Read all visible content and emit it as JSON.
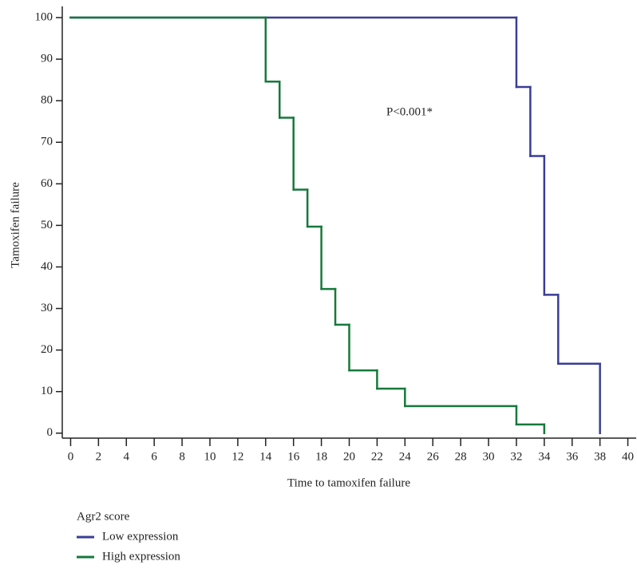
{
  "chart_data": {
    "type": "step",
    "x_label": "Time to tamoxifen failure",
    "y_label": "Tamoxifen failure",
    "annotation": "P<0.001*",
    "legend_title": "Agr2 score",
    "xlim": [
      -0.6,
      40.6
    ],
    "ylim": [
      -1.2,
      102.7
    ],
    "xticks": [
      0,
      2,
      4,
      6,
      8,
      10,
      12,
      14,
      16,
      18,
      20,
      22,
      24,
      26,
      28,
      30,
      32,
      34,
      36,
      38,
      40
    ],
    "yticks": [
      0,
      10,
      20,
      30,
      40,
      50,
      60,
      70,
      80,
      90,
      100
    ],
    "series": [
      {
        "name": "Low expression",
        "color": "#3a3d97",
        "x": [
          0,
          32,
          33,
          34,
          35,
          38
        ],
        "values": [
          100,
          83.3,
          66.7,
          33.3,
          16.7,
          0
        ]
      },
      {
        "name": "High expression",
        "color": "#16793b",
        "x": [
          0,
          14,
          15,
          16,
          17,
          18,
          19,
          20,
          22,
          24,
          32,
          34
        ],
        "values": [
          100,
          84.6,
          75.9,
          58.6,
          49.7,
          34.7,
          26.1,
          15.1,
          10.7,
          6.5,
          2.1,
          0
        ]
      }
    ]
  }
}
